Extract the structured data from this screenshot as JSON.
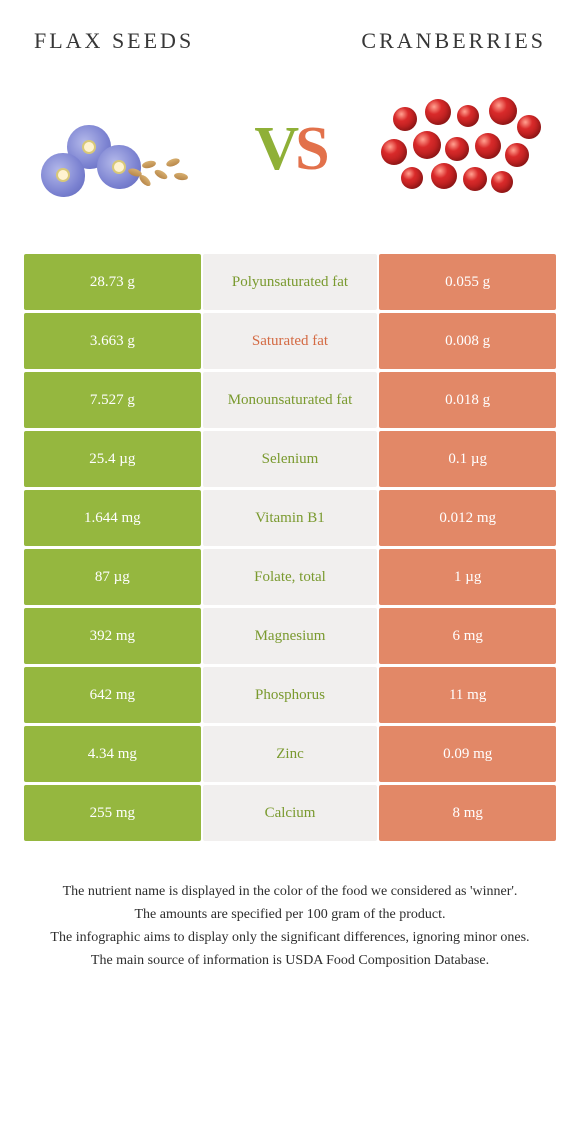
{
  "titles": {
    "left": "FLAX SEEDS",
    "right": "CRANBERRIES"
  },
  "vs": {
    "v": "V",
    "s": "S"
  },
  "colors": {
    "left_bg": "#95b73f",
    "right_bg": "#e28867",
    "mid_bg": "#f1efee",
    "winner_left_text": "#7a9a2f",
    "winner_right_text": "#d46a43",
    "cell_text": "#ffffff"
  },
  "rows": [
    {
      "left": "28.73 g",
      "label": "Polyunsaturated fat",
      "right": "0.055 g",
      "winner": "left"
    },
    {
      "left": "3.663 g",
      "label": "Saturated fat",
      "right": "0.008 g",
      "winner": "right"
    },
    {
      "left": "7.527 g",
      "label": "Monounsaturated fat",
      "right": "0.018 g",
      "winner": "left"
    },
    {
      "left": "25.4 µg",
      "label": "Selenium",
      "right": "0.1 µg",
      "winner": "left"
    },
    {
      "left": "1.644 mg",
      "label": "Vitamin B1",
      "right": "0.012 mg",
      "winner": "left"
    },
    {
      "left": "87 µg",
      "label": "Folate, total",
      "right": "1 µg",
      "winner": "left"
    },
    {
      "left": "392 mg",
      "label": "Magnesium",
      "right": "6 mg",
      "winner": "left"
    },
    {
      "left": "642 mg",
      "label": "Phosphorus",
      "right": "11 mg",
      "winner": "left"
    },
    {
      "left": "4.34 mg",
      "label": "Zinc",
      "right": "0.09 mg",
      "winner": "left"
    },
    {
      "left": "255 mg",
      "label": "Calcium",
      "right": "8 mg",
      "winner": "left"
    }
  ],
  "footnotes": [
    "The nutrient name is displayed in the color of the food we considered as 'winner'.",
    "The amounts are specified per 100 gram of the product.",
    "The infographic aims to display only the significant differences, ignoring minor ones.",
    "The main source of information is USDA Food Composition Database."
  ]
}
